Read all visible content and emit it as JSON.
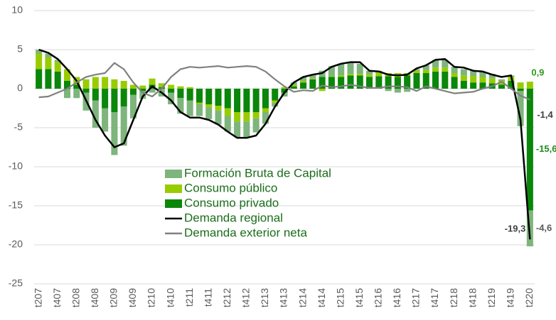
{
  "chart_data": {
    "type": "bar",
    "categories": [
      "t207",
      null,
      "t407",
      null,
      "t208",
      null,
      "t408",
      null,
      "t209",
      null,
      "t409",
      null,
      "t210",
      null,
      "t410",
      null,
      "t211",
      null,
      "t411",
      null,
      "t212",
      null,
      "t412",
      null,
      "t213",
      null,
      "t413",
      null,
      "t214",
      null,
      "t414",
      null,
      "t215",
      null,
      "t415",
      null,
      "t216",
      null,
      "t416",
      null,
      "t217",
      null,
      "t417",
      null,
      "t218",
      null,
      "t418",
      null,
      "t219",
      null,
      "t419",
      null,
      "t220"
    ],
    "series": [
      {
        "name": "Formación Bruta de Capital",
        "type": "bar",
        "color": "#7db57c",
        "label_color": "#595959",
        "values": [
          0.5,
          0.5,
          0.3,
          -1.2,
          -1.2,
          -2.3,
          -3.5,
          -3,
          -5.5,
          -5,
          -3,
          -1,
          -0.5,
          -1,
          -1.5,
          -2,
          -2,
          -1.5,
          -1.5,
          -1.8,
          -2,
          -2,
          -2,
          -1.8,
          -1.5,
          -0.5,
          -0.5,
          0.3,
          0.5,
          0.5,
          0.8,
          1.3,
          1.5,
          1.5,
          1.3,
          0.5,
          0.2,
          -0.3,
          -0.5,
          -0.4,
          0.2,
          0.6,
          1,
          1,
          0.8,
          0.8,
          0.7,
          0.7,
          0.6,
          0.2,
          0.2,
          -4.5,
          -4.6
        ],
        "value_labels": [
          null,
          null,
          null,
          null,
          null,
          null,
          null,
          null,
          null,
          null,
          null,
          null,
          null,
          null,
          null,
          null,
          null,
          null,
          null,
          null,
          null,
          null,
          null,
          null,
          null,
          null,
          null,
          null,
          null,
          null,
          null,
          null,
          null,
          null,
          null,
          null,
          null,
          null,
          null,
          null,
          null,
          null,
          null,
          null,
          null,
          null,
          null,
          null,
          null,
          null,
          null,
          null,
          "-4,6"
        ]
      },
      {
        "name": "Consumo público",
        "type": "bar",
        "color": "#99cc00",
        "label_color": "#2e9a1e",
        "values": [
          2,
          1.5,
          1.2,
          1.5,
          1,
          1.2,
          1.5,
          1.5,
          1.2,
          1,
          0.5,
          0.4,
          0.8,
          0.5,
          0.5,
          0.3,
          0.2,
          -0.2,
          -0.4,
          -0.6,
          -1,
          -1.2,
          -1.2,
          -0.8,
          -0.5,
          -0.3,
          0.2,
          0.2,
          0.2,
          0.1,
          -0.3,
          0.1,
          0.2,
          0.2,
          0.2,
          0.3,
          0.5,
          0.4,
          0.5,
          0.3,
          0.3,
          0.4,
          0.5,
          0.5,
          0.5,
          0.7,
          0.8,
          0.7,
          0.6,
          0.5,
          0.5,
          0.8,
          0.9
        ],
        "value_labels": [
          null,
          null,
          null,
          null,
          null,
          null,
          null,
          null,
          null,
          null,
          null,
          null,
          null,
          null,
          null,
          null,
          null,
          null,
          null,
          null,
          null,
          null,
          null,
          null,
          null,
          null,
          null,
          null,
          null,
          null,
          null,
          null,
          null,
          null,
          null,
          null,
          null,
          null,
          null,
          null,
          null,
          null,
          null,
          null,
          null,
          null,
          null,
          null,
          null,
          null,
          null,
          null,
          "0,9"
        ]
      },
      {
        "name": "Consumo privado",
        "type": "bar",
        "color": "#0a870a",
        "label_color": "#1e8c1e",
        "values": [
          2.5,
          2.5,
          2.2,
          1,
          0.5,
          -0.5,
          -1.5,
          -2.5,
          -3,
          -2.3,
          -0.8,
          -0.3,
          0.5,
          0.2,
          -0.5,
          -1.2,
          -1.5,
          -1.8,
          -2,
          -2.2,
          -2.5,
          -3,
          -3,
          -3,
          -2.5,
          -1.5,
          -0.5,
          0.3,
          0.8,
          1.2,
          1.5,
          1.5,
          1.5,
          1.7,
          1.7,
          1.5,
          1.6,
          1.6,
          1.5,
          1.7,
          2,
          2,
          2.2,
          2.2,
          1.5,
          1,
          0.8,
          0.8,
          0.7,
          0.5,
          1,
          -0.3,
          -15.6
        ],
        "value_labels": [
          null,
          null,
          null,
          null,
          null,
          null,
          null,
          null,
          null,
          null,
          null,
          null,
          null,
          null,
          null,
          null,
          null,
          null,
          null,
          null,
          null,
          null,
          null,
          null,
          null,
          null,
          null,
          null,
          null,
          null,
          null,
          null,
          null,
          null,
          null,
          null,
          null,
          null,
          null,
          null,
          null,
          null,
          null,
          null,
          null,
          null,
          null,
          null,
          null,
          null,
          null,
          null,
          "-15,6"
        ]
      },
      {
        "name": "Demanda regional",
        "type": "line",
        "color": "#000000",
        "label_color": "#404040",
        "values": [
          5,
          4.6,
          3.8,
          2.5,
          1,
          -1.5,
          -4,
          -6,
          -7.5,
          -7,
          -4,
          -1,
          0.3,
          -0.5,
          -1.5,
          -3,
          -3.7,
          -3.7,
          -4,
          -4.6,
          -5.5,
          -6.3,
          -6.3,
          -6,
          -4.5,
          -2.3,
          -0.5,
          0.8,
          1.5,
          1.8,
          2,
          2.8,
          3.2,
          3.4,
          3.4,
          2.3,
          2.2,
          1.8,
          1.7,
          1.8,
          2.6,
          3,
          3.7,
          3.8,
          2.8,
          2.7,
          2.3,
          2.2,
          1.8,
          1.5,
          1.7,
          -4,
          -19.3
        ],
        "value_labels": [
          null,
          null,
          null,
          null,
          null,
          null,
          null,
          null,
          null,
          null,
          null,
          null,
          null,
          null,
          null,
          null,
          null,
          null,
          null,
          null,
          null,
          null,
          null,
          null,
          null,
          null,
          null,
          null,
          null,
          null,
          null,
          null,
          null,
          null,
          null,
          null,
          null,
          null,
          null,
          null,
          null,
          null,
          null,
          null,
          null,
          null,
          null,
          null,
          null,
          null,
          null,
          null,
          "-19,3"
        ]
      },
      {
        "name": "Demanda exterior neta",
        "type": "line",
        "color": "#808080",
        "label_color": "#404040",
        "values": [
          -1.1,
          -1,
          -0.5,
          0,
          0.8,
          1.5,
          1.8,
          2,
          3.3,
          2.5,
          0.8,
          -0.5,
          -1,
          0,
          1.5,
          2.5,
          2.8,
          2.7,
          2.8,
          2.9,
          2.7,
          2.8,
          2.9,
          2.8,
          2.2,
          1.2,
          0.3,
          -0.4,
          -0.2,
          -0.3,
          0.4,
          0.2,
          0.3,
          0.5,
          0.3,
          0.1,
          0.1,
          0.3,
          0.3,
          0.2,
          -0.3,
          0.3,
          0,
          -0.3,
          -0.6,
          -0.5,
          -0.4,
          0,
          0.3,
          0.9,
          0,
          -0.9,
          -1.4
        ],
        "value_labels": [
          null,
          null,
          null,
          null,
          null,
          null,
          null,
          null,
          null,
          null,
          null,
          null,
          null,
          null,
          null,
          null,
          null,
          null,
          null,
          null,
          null,
          null,
          null,
          null,
          null,
          null,
          null,
          null,
          null,
          null,
          null,
          null,
          null,
          null,
          null,
          null,
          null,
          null,
          null,
          null,
          null,
          null,
          null,
          null,
          null,
          null,
          null,
          null,
          null,
          null,
          null,
          null,
          "-1,4"
        ]
      }
    ],
    "stacked": true,
    "ylim": [
      -25,
      10
    ],
    "yticks": [
      -25,
      -20,
      -15,
      -10,
      -5,
      0,
      5,
      10
    ],
    "grid": true,
    "legend": "center"
  }
}
